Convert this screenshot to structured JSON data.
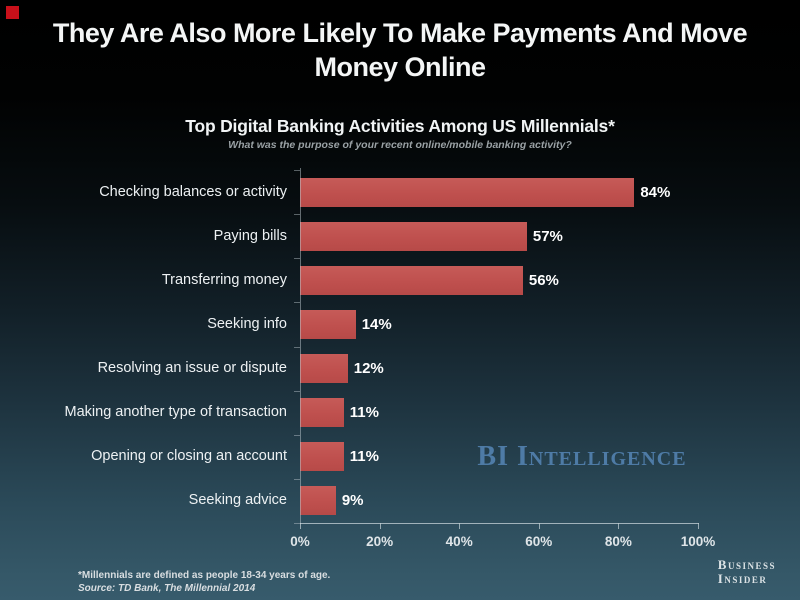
{
  "header": {
    "title_line1": "They Are Also More Likely To Make Payments And Move",
    "title_line2": "Money Online",
    "accent_color": "#c8101a"
  },
  "chart_data": {
    "type": "bar",
    "orientation": "horizontal",
    "title": "Top Digital Banking Activities Among US Millennials*",
    "subtitle": "What was the purpose of your recent online/mobile banking activity?",
    "categories": [
      "Checking balances or activity",
      "Paying bills",
      "Transferring money",
      "Seeking info",
      "Resolving an issue or dispute",
      "Making another type of transaction",
      "Opening or closing an account",
      "Seeking advice"
    ],
    "values": [
      84,
      57,
      56,
      14,
      12,
      11,
      11,
      9
    ],
    "value_suffix": "%",
    "xlabel": "",
    "ylabel": "",
    "xlim": [
      0,
      100
    ],
    "x_ticks": [
      "0%",
      "20%",
      "40%",
      "60%",
      "80%",
      "100%"
    ],
    "grid": false,
    "legend": false,
    "bar_color": "#c0514f"
  },
  "branding": {
    "bi_intelligence": "BI Intelligence",
    "bi_intelligence_color": "#4e7ba6",
    "business_insider_line1": "Business",
    "business_insider_line2": "Insider"
  },
  "footnote": {
    "line1": "*Millennials are defined as people 18-34 years of age.",
    "line2": "Source: TD Bank, The Millennial 2014"
  }
}
